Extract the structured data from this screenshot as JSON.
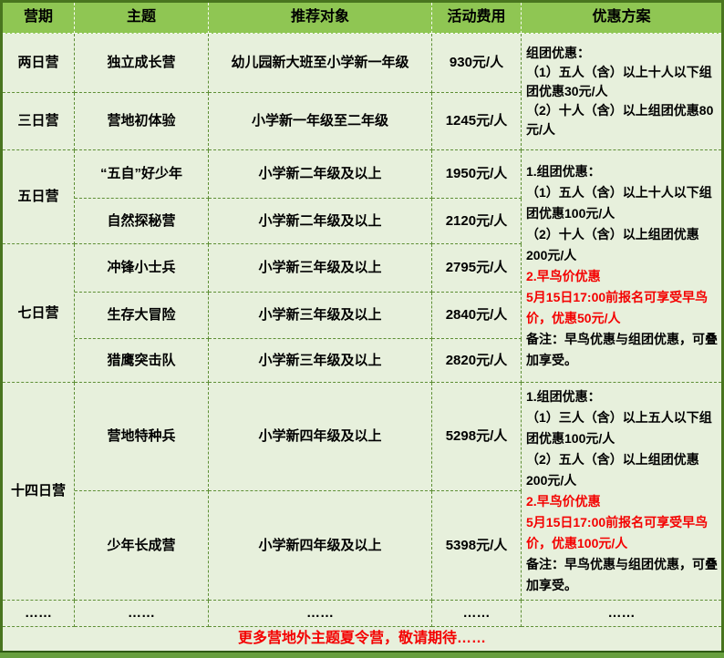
{
  "table": {
    "headers": [
      "营期",
      "主题",
      "推荐对象",
      "活动费用",
      "优惠方案"
    ],
    "rows": [
      {
        "period": "两日营",
        "theme": "独立成长营",
        "audience": "幼儿园新大班至小学新一年级",
        "fee": "930元/人"
      },
      {
        "period": "三日营",
        "theme": "营地初体验",
        "audience": "小学新一年级至二年级",
        "fee": "1245元/人"
      },
      {
        "period": "五日营",
        "theme": "“五自”好少年",
        "audience": "小学新二年级及以上",
        "fee": "1950元/人"
      },
      {
        "period": "",
        "theme": "自然探秘营",
        "audience": "小学新二年级及以上",
        "fee": "2120元/人"
      },
      {
        "period": "七日营",
        "theme": "冲锋小士兵",
        "audience": "小学新三年级及以上",
        "fee": "2795元/人"
      },
      {
        "period": "",
        "theme": "生存大冒险",
        "audience": "小学新三年级及以上",
        "fee": "2840元/人"
      },
      {
        "period": "",
        "theme": "猎鹰突击队",
        "audience": "小学新三年级及以上",
        "fee": "2820元/人"
      },
      {
        "period": "十四日营",
        "theme": "营地特种兵",
        "audience": "小学新四年级及以上",
        "fee": "5298元/人"
      },
      {
        "period": "",
        "theme": "少年长成营",
        "audience": "小学新四年级及以上",
        "fee": "5398元/人"
      }
    ],
    "discounts": {
      "groupA": {
        "black1": "组团优惠：\n（1）五人（含）以上十人以下组团优惠30元/人\n（2）十人（含）以上组团优惠80元/人"
      },
      "groupB": {
        "black1": "1.组团优惠：\n（1）五人（含）以上十人以下组团优惠100元/人\n（2）十人（含）以上组团优惠200元/人",
        "red1": "2.早鸟价优惠\n5月15日17:00前报名可享受早鸟价，优惠50元/人",
        "black2": "备注：早鸟优惠与组团优惠，可叠加享受。"
      },
      "groupC": {
        "black1": "1.组团优惠：\n（1）三人（含）以上五人以下组团优惠100元/人\n（2）五人（含）以上组团优惠200元/人",
        "red1": "2.早鸟价优惠\n5月15日17:00前报名可享受早鸟价，优惠100元/人",
        "black2": "备注：早鸟优惠与组团优惠，可叠加享受。"
      }
    },
    "ellipsis": "……",
    "footer_note": "更多营地外主题夏令营，敬请期待……"
  },
  "colors": {
    "header_green": "#8fc653",
    "body_green": "#e7f0dc",
    "dashed_border_green": "#5e8f35",
    "outer_border_green": "#49751f",
    "bottom_bar_green": "#679f3e",
    "highlight_red": "#f40000",
    "text_black": "#000000"
  }
}
